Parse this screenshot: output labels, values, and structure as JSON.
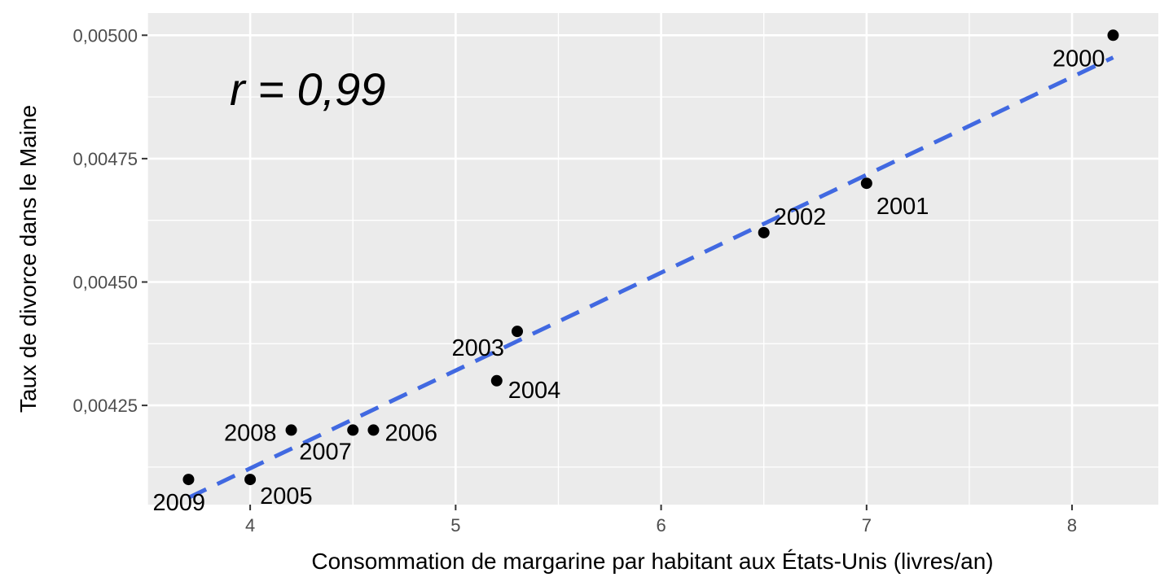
{
  "chart_data": {
    "type": "scatter",
    "title": "",
    "xlabel": "Consommation de margarine par habitant aux États-Unis (livres/an)",
    "ylabel": "Taux de divorce dans le Maine",
    "xlim": [
      3.5,
      8.42
    ],
    "ylim": [
      0.004049,
      0.005045
    ],
    "x_ticks": [
      4,
      5,
      6,
      7,
      8
    ],
    "x_tick_labels": [
      "4",
      "5",
      "6",
      "7",
      "8"
    ],
    "y_ticks": [
      0.00425,
      0.0045,
      0.00475,
      0.005
    ],
    "y_tick_labels": [
      "0,00425",
      "0,00450",
      "0,00475",
      "0,00500"
    ],
    "grid": true,
    "points": [
      {
        "label": "2000",
        "x": 8.2,
        "y": 0.005
      },
      {
        "label": "2001",
        "x": 7.0,
        "y": 0.0047
      },
      {
        "label": "2002",
        "x": 6.5,
        "y": 0.0046
      },
      {
        "label": "2003",
        "x": 5.3,
        "y": 0.0044
      },
      {
        "label": "2004",
        "x": 5.2,
        "y": 0.0043
      },
      {
        "label": "2005",
        "x": 4.0,
        "y": 0.0041
      },
      {
        "label": "2006",
        "x": 4.6,
        "y": 0.0042
      },
      {
        "label": "2007",
        "x": 4.5,
        "y": 0.0042
      },
      {
        "label": "2008",
        "x": 4.2,
        "y": 0.0042
      },
      {
        "label": "2009",
        "x": 3.7,
        "y": 0.0041
      }
    ],
    "trend_line": {
      "x1": 3.7,
      "y1": 0.004063,
      "x2": 8.2,
      "y2": 0.004955,
      "color": "#4169e1",
      "style": "dashed"
    },
    "annotation": "r = 0,99",
    "colors": {
      "panel": "#ebebeb",
      "grid": "#ffffff",
      "point": "#000000",
      "trend": "#4169e1"
    }
  }
}
